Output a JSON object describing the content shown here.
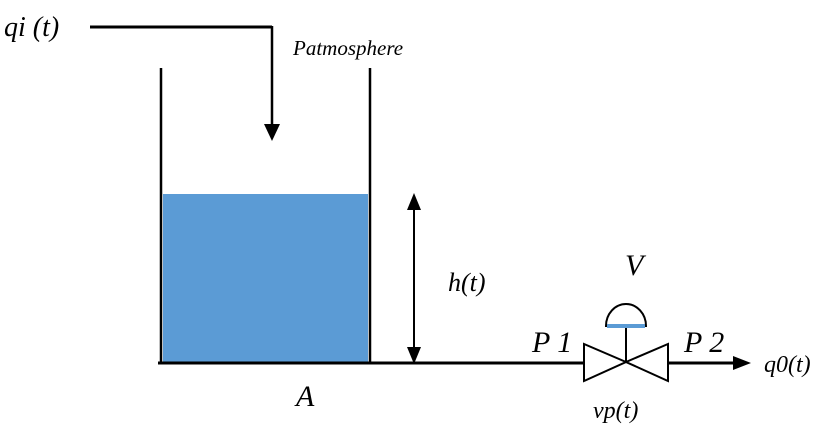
{
  "labels": {
    "inflow": "qi (t)",
    "atmosphere": "Patmosphere",
    "height": "h(t)",
    "area": "A",
    "valve_v": "V",
    "pressure_1": "P 1",
    "pressure_2": "P 2",
    "outflow": "q0(t)",
    "valve_position": "vp(t)"
  },
  "colors": {
    "water": "#5b9bd5",
    "line": "#000000",
    "diaphragm": "#5b9bd5"
  }
}
